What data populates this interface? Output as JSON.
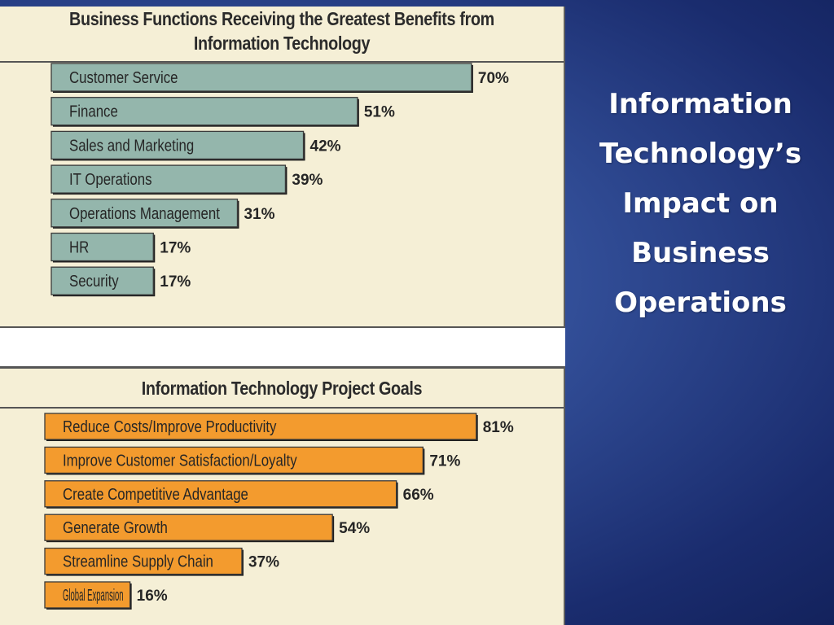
{
  "slide_title": "Information\nTechnology’s\nImpact on\nBusiness\nOperations",
  "chart_data": [
    {
      "type": "bar",
      "orientation": "horizontal",
      "title": "Business Functions Receiving the Greatest Benefits from Information Technology",
      "categories": [
        "Customer Service",
        "Finance",
        "Sales and Marketing",
        "IT Operations",
        "Operations Management",
        "HR",
        "Security"
      ],
      "values": [
        70,
        51,
        42,
        39,
        31,
        17,
        17
      ],
      "unit": "%",
      "color": "#94b6ac",
      "xlim": [
        0,
        100
      ],
      "legend": "none",
      "grid": false
    },
    {
      "type": "bar",
      "orientation": "horizontal",
      "title": "Information Technology Project Goals",
      "categories": [
        "Reduce Costs/Improve Productivity",
        "Improve Customer Satisfaction/Loyalty",
        "Create Competitive Advantage",
        "Generate Growth",
        "Streamline Supply Chain",
        "Global Expansion"
      ],
      "values": [
        81,
        71,
        66,
        54,
        37,
        16
      ],
      "unit": "%",
      "color": "#f39b2e",
      "xlim": [
        0,
        100
      ],
      "legend": "none",
      "grid": false
    }
  ]
}
